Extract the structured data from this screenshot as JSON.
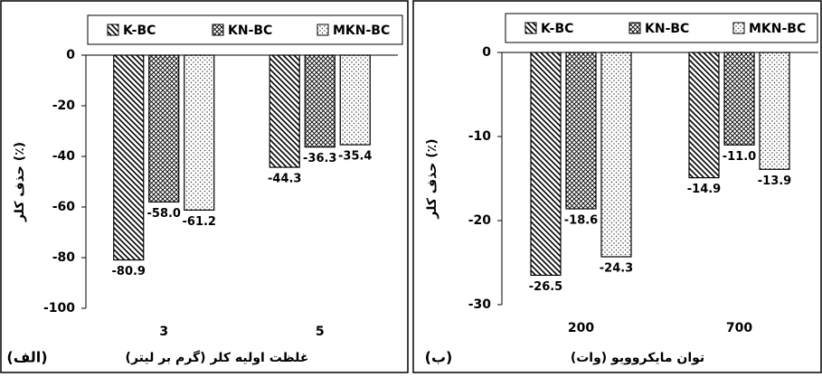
{
  "chart_data": [
    {
      "type": "bar",
      "panel_label": "(الف)",
      "y_label": "حذف کلر (٪)",
      "x_label": "غلظت اولیه کلر (گرم بر لیتر)",
      "categories": [
        "3",
        "5"
      ],
      "series": [
        {
          "name": "K-BC",
          "pattern": "diagonal",
          "values": [
            -80.9,
            -44.3
          ],
          "value_labels": [
            "-80.9",
            "-44.3"
          ]
        },
        {
          "name": "KN-BC",
          "pattern": "crosshatch",
          "values": [
            -58.0,
            -36.3
          ],
          "value_labels": [
            "-58.0",
            "-36.3"
          ]
        },
        {
          "name": "MKN-BC",
          "pattern": "dots",
          "values": [
            -61.2,
            -35.4
          ],
          "value_labels": [
            "-61.2",
            "-35.4"
          ]
        }
      ],
      "ylim": [
        -100,
        0
      ],
      "yticks": [
        0,
        -20,
        -40,
        -60,
        -80,
        -100
      ],
      "grid": false
    },
    {
      "type": "bar",
      "panel_label": "(ب)",
      "y_label": "حذف کلر (٪)",
      "x_label": "توان مایکروویو (وات)",
      "categories": [
        "200",
        "700"
      ],
      "series": [
        {
          "name": "K-BC",
          "pattern": "diagonal",
          "values": [
            -26.5,
            -14.9
          ],
          "value_labels": [
            "-26.5",
            "-14.9"
          ]
        },
        {
          "name": "KN-BC",
          "pattern": "crosshatch",
          "values": [
            -18.6,
            -11.0
          ],
          "value_labels": [
            "-18.6",
            "-11.0"
          ]
        },
        {
          "name": "MKN-BC",
          "pattern": "dots",
          "values": [
            -24.3,
            -13.9
          ],
          "value_labels": [
            "-24.3",
            "-13.9"
          ]
        }
      ],
      "ylim": [
        -30,
        0
      ],
      "yticks": [
        0,
        -10,
        -20,
        -30
      ],
      "grid": false
    }
  ]
}
